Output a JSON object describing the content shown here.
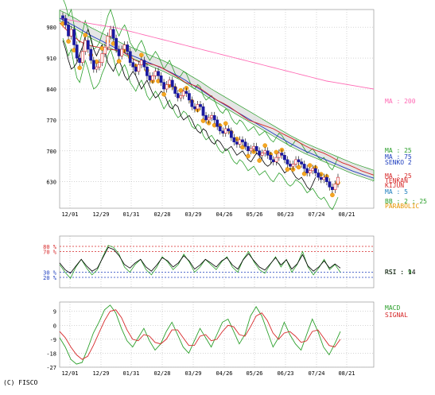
{
  "chart_data": [
    {
      "type": "candlestick",
      "title": "",
      "x_ticks": [
        "12/01",
        "12/29",
        "01/31",
        "02/28",
        "03/29",
        "04/26",
        "05/26",
        "06/23",
        "07/24",
        "08/21"
      ],
      "y_ticks": [
        980,
        910,
        840,
        770,
        700,
        630
      ],
      "ylim": [
        570,
        1020
      ],
      "grid": true,
      "legend": [
        {
          "text": "MA : 200",
          "color": "#ff69b4"
        },
        {
          "text": "MA : 25",
          "color": "#2ca02c"
        },
        {
          "text": "MA : 75",
          "color": "#1f3fbf"
        },
        {
          "text": "SENKO 2",
          "color": "#1f3fbf"
        },
        {
          "text": "MA : 25",
          "color": "#d62728"
        },
        {
          "text": "TENKAN",
          "color": "#d62728"
        },
        {
          "text": "KIJUN",
          "color": "#d62728"
        },
        {
          "text": "MA : 5",
          "color": "#1f7fbf"
        },
        {
          "text": "BB : 2 : 25",
          "color": "#2ca02c"
        },
        {
          "text": "PARABOLIC",
          "color": "#e69500"
        }
      ],
      "close": [
        1000,
        985,
        960,
        975,
        940,
        910,
        900,
        925,
        950,
        930,
        905,
        885,
        890,
        900,
        920,
        935,
        960,
        975,
        955,
        930,
        915,
        930,
        940,
        925,
        900,
        890,
        880,
        895,
        905,
        890,
        870,
        860,
        870,
        880,
        870,
        855,
        840,
        850,
        860,
        845,
        830,
        820,
        825,
        835,
        830,
        815,
        800,
        795,
        805,
        800,
        780,
        770,
        775,
        780,
        770,
        755,
        745,
        740,
        750,
        745,
        730,
        720,
        715,
        725,
        720,
        710,
        700,
        705,
        710,
        700,
        690,
        695,
        700,
        690,
        680,
        675,
        685,
        695,
        690,
        680,
        670,
        665,
        670,
        680,
        675,
        670,
        660,
        650,
        655,
        660,
        650,
        640,
        635,
        640,
        630,
        618,
        612,
        625,
        640
      ],
      "series": [
        {
          "name": "MA : 200",
          "color": "#ff69b4",
          "values": [
            1000,
            998,
            996,
            994,
            992,
            990,
            988,
            986,
            984,
            982,
            980,
            978,
            975,
            972,
            969,
            966,
            963,
            960,
            957,
            954,
            951,
            948,
            945,
            942,
            939,
            936,
            933,
            930,
            927,
            924,
            921,
            918,
            915,
            912,
            909,
            906,
            903,
            900,
            897,
            894,
            891,
            888,
            885,
            882,
            879,
            876,
            873,
            870,
            867,
            864,
            861,
            858,
            856,
            854,
            852,
            850,
            848,
            846,
            844,
            842,
            840
          ]
        },
        {
          "name": "MA : 75",
          "color": "#1f3fbf",
          "values": [
            1000,
            995,
            988,
            982,
            975,
            968,
            961,
            955,
            949,
            943,
            937,
            931,
            925,
            920,
            915,
            910,
            905,
            900,
            895,
            890,
            885,
            879,
            873,
            867,
            860,
            852,
            845,
            838,
            830,
            822,
            815,
            808,
            801,
            794,
            787,
            780,
            773,
            766,
            759,
            752,
            745,
            738,
            731,
            724,
            717,
            711,
            705,
            699,
            694,
            689,
            684,
            679,
            674,
            669,
            664,
            659,
            654,
            650,
            646,
            642,
            638
          ]
        },
        {
          "name": "MA : 25",
          "color": "#d62728",
          "values": [
            990,
            975,
            962,
            950,
            942,
            938,
            935,
            932,
            930,
            928,
            925,
            915,
            905,
            900,
            898,
            895,
            890,
            882,
            874,
            865,
            855,
            850,
            845,
            835,
            825,
            815,
            808,
            800,
            790,
            780,
            770,
            765,
            760,
            755,
            750,
            742,
            735,
            728,
            720,
            712,
            705,
            700,
            695,
            688,
            680,
            673,
            668,
            662,
            655,
            650,
            645
          ]
        }
      ]
    },
    {
      "type": "line",
      "title": "RSI",
      "x_ticks": [
        "12/01",
        "12/29",
        "01/31",
        "02/28",
        "03/29",
        "04/26",
        "05/26",
        "06/23",
        "07/24",
        "08/21"
      ],
      "y_ticks": [
        "80 %",
        "70 %",
        "30 %",
        "20 %"
      ],
      "ylim": [
        0,
        100
      ],
      "legend": [
        {
          "text": "RSI : 9",
          "color": "#2ca02c"
        },
        {
          "text": "RSI : 14",
          "color": "#000000"
        }
      ],
      "series": [
        {
          "name": "RSI : 9",
          "color": "#2ca02c",
          "values": [
            45,
            30,
            18,
            40,
            55,
            38,
            25,
            35,
            60,
            82,
            78,
            65,
            40,
            30,
            45,
            55,
            35,
            25,
            40,
            60,
            50,
            35,
            45,
            65,
            50,
            30,
            40,
            55,
            45,
            35,
            50,
            60,
            40,
            30,
            55,
            70,
            50,
            35,
            28,
            45,
            60,
            40,
            55,
            30,
            45,
            70,
            40,
            25,
            38,
            55,
            35,
            45,
            30
          ]
        },
        {
          "name": "RSI : 14",
          "color": "#000000",
          "values": [
            48,
            35,
            28,
            42,
            55,
            42,
            32,
            38,
            58,
            78,
            74,
            62,
            45,
            38,
            48,
            55,
            40,
            32,
            44,
            58,
            52,
            40,
            48,
            62,
            52,
            36,
            44,
            55,
            48,
            40,
            52,
            58,
            44,
            36,
            54,
            66,
            52,
            40,
            34,
            46,
            58,
            44,
            54,
            36,
            46,
            64,
            42,
            32,
            40,
            52,
            38,
            46,
            38
          ]
        }
      ]
    },
    {
      "type": "line",
      "title": "MACD",
      "x_ticks": [
        "12/01",
        "12/29",
        "01/31",
        "02/28",
        "03/29",
        "04/26",
        "05/26",
        "06/23",
        "07/24",
        "08/21"
      ],
      "y_ticks": [
        9,
        0,
        -9,
        -18,
        -27
      ],
      "ylim": [
        -27,
        15
      ],
      "legend": [
        {
          "text": "MACD",
          "color": "#2ca02c"
        },
        {
          "text": "SIGNAL",
          "color": "#d62728"
        }
      ],
      "series": [
        {
          "name": "MACD",
          "color": "#2ca02c",
          "values": [
            -8,
            -14,
            -22,
            -25,
            -24,
            -15,
            -5,
            2,
            10,
            13,
            8,
            -2,
            -10,
            -14,
            -8,
            -2,
            -10,
            -16,
            -12,
            -4,
            2,
            -6,
            -14,
            -18,
            -10,
            -2,
            -8,
            -14,
            -6,
            2,
            4,
            -4,
            -12,
            -6,
            6,
            12,
            6,
            -4,
            -14,
            -8,
            2,
            -6,
            -12,
            -16,
            -6,
            4,
            -4,
            -14,
            -19,
            -12,
            -4
          ]
        },
        {
          "name": "SIGNAL",
          "color": "#d62728",
          "values": [
            -4,
            -8,
            -14,
            -19,
            -22,
            -20,
            -13,
            -5,
            3,
            9,
            10,
            5,
            -3,
            -9,
            -10,
            -6,
            -7,
            -11,
            -12,
            -9,
            -3,
            -3,
            -8,
            -13,
            -13,
            -7,
            -6,
            -10,
            -9,
            -4,
            0,
            -1,
            -6,
            -7,
            -1,
            6,
            8,
            3,
            -5,
            -9,
            -5,
            -4,
            -7,
            -11,
            -10,
            -4,
            -3,
            -8,
            -13,
            -14,
            -9
          ]
        }
      ]
    }
  ],
  "footer": {
    "copyright": "(C) FISCO"
  }
}
